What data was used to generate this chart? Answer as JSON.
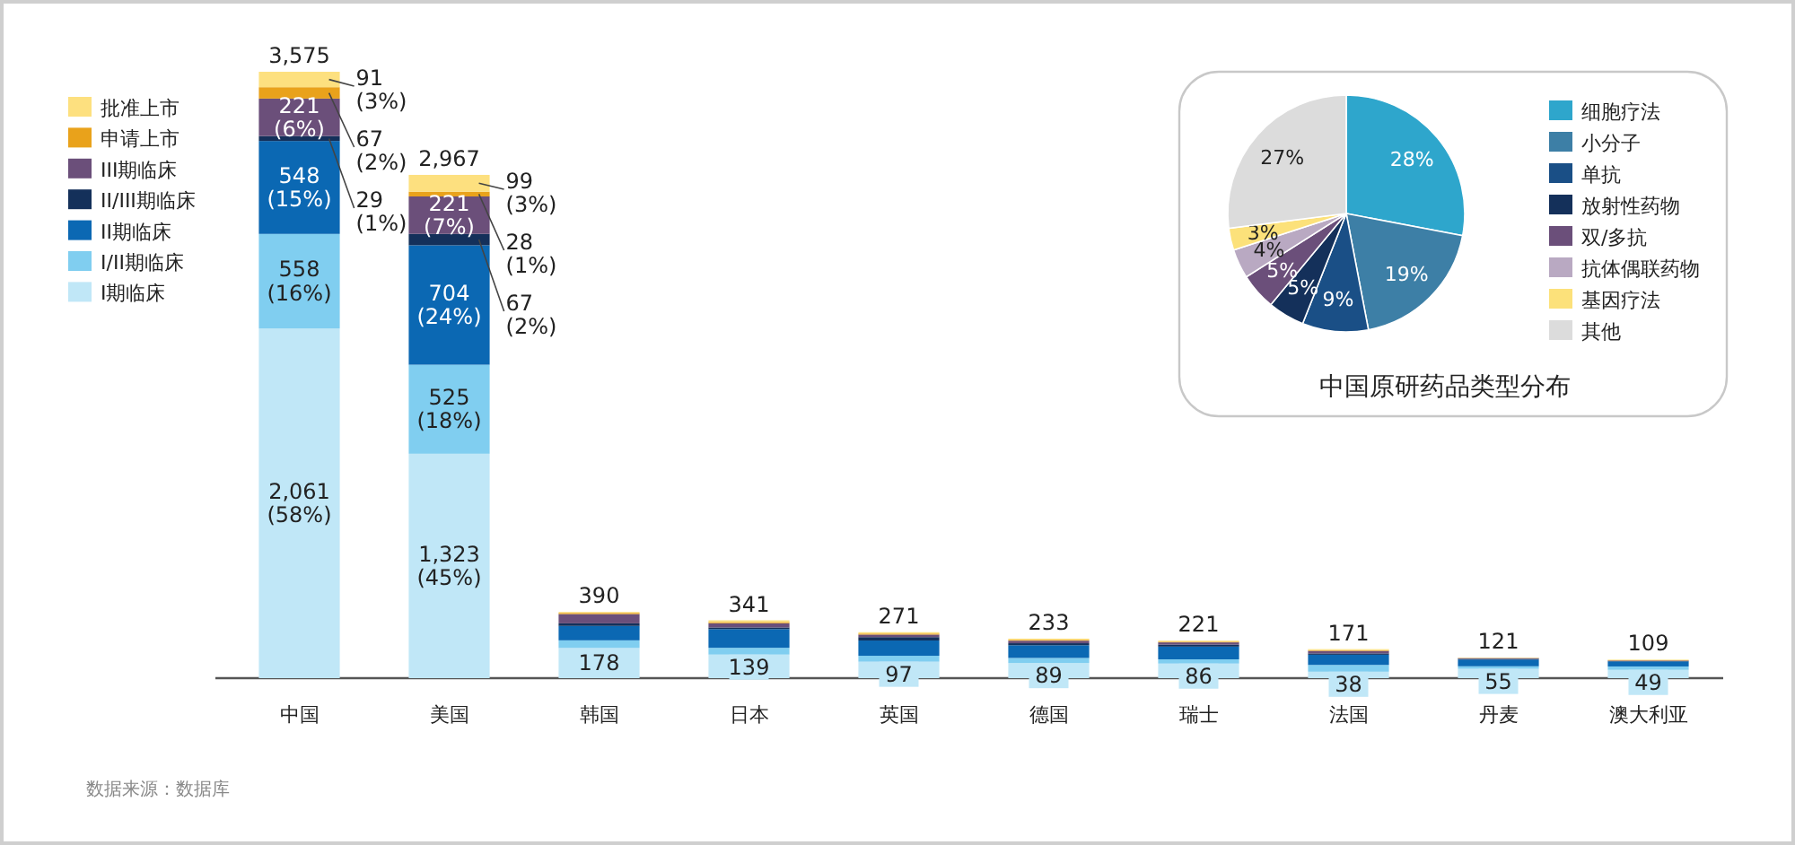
{
  "chart_data": [
    {
      "type": "bar",
      "stacked": true,
      "legend": "top left",
      "categories": [
        "中国",
        "美国",
        "韩国",
        "日本",
        "英国",
        "德国",
        "瑞士",
        "法国",
        "丹麦",
        "澳大利亚"
      ],
      "series": [
        {
          "name": "I期临床",
          "color": "#c0e7f7",
          "values": [
            2061,
            1323,
            178,
            139,
            97,
            89,
            86,
            38,
            55,
            49
          ],
          "value_labels": [
            "2,061\n(58%)",
            "1,323\n(45%)",
            "178",
            "139",
            "97",
            "89",
            "86",
            "38",
            "55",
            "49"
          ]
        },
        {
          "name": "I/II期临床",
          "color": "#80cef0",
          "values": [
            558,
            525,
            45,
            40,
            35,
            30,
            25,
            40,
            15,
            20
          ],
          "value_labels": [
            "558\n(16%)",
            "525\n(18%)",
            null,
            null,
            null,
            null,
            null,
            null,
            null,
            null
          ]
        },
        {
          "name": "II期临床",
          "color": "#0b68b3",
          "values": [
            548,
            704,
            85,
            110,
            90,
            75,
            75,
            60,
            40,
            30
          ],
          "value_labels": [
            "548\n(15%)",
            "704\n(24%)",
            null,
            null,
            null,
            null,
            null,
            null,
            null,
            null
          ]
        },
        {
          "name": "II/III期临床",
          "color": "#14305a",
          "values": [
            29,
            67,
            15,
            10,
            20,
            12,
            12,
            8,
            4,
            2
          ],
          "value_labels": [
            "29\n(1%)",
            "67\n(2%)",
            null,
            null,
            null,
            null,
            null,
            null,
            null,
            null
          ]
        },
        {
          "name": "III期临床",
          "color": "#6b4f7a",
          "values": [
            221,
            221,
            55,
            25,
            15,
            15,
            13,
            15,
            4,
            3
          ],
          "value_labels": [
            "221\n(6%)",
            "221\n(7%)",
            null,
            null,
            null,
            null,
            null,
            null,
            null,
            null
          ]
        },
        {
          "name": "申请上市",
          "color": "#e9a21b",
          "values": [
            67,
            28,
            7,
            7,
            6,
            5,
            4,
            4,
            1,
            2
          ],
          "value_labels": [
            "67\n(2%)",
            "28\n(1%)",
            null,
            null,
            null,
            null,
            null,
            null,
            null,
            null
          ]
        },
        {
          "name": "批准上市",
          "color": "#fde07f",
          "values": [
            91,
            99,
            5,
            10,
            8,
            7,
            6,
            6,
            2,
            3
          ],
          "value_labels": [
            "91\n(3%)",
            "99\n(3%)",
            null,
            null,
            null,
            null,
            null,
            null,
            null,
            null
          ]
        }
      ],
      "totals": [
        "3,575",
        "2,967",
        "390",
        "341",
        "271",
        "233",
        "221",
        "171",
        "121",
        "109"
      ],
      "annotations": [
        "数据来源：数据库"
      ]
    },
    {
      "type": "pie",
      "title": "中国原研药品类型分布",
      "legend": "right",
      "categories": [
        "细胞疗法",
        "小分子",
        "单抗",
        "放射性药物",
        "双/多抗",
        "抗体偶联药物",
        "基因疗法",
        "其他"
      ],
      "values": [
        28,
        19,
        9,
        5,
        5,
        4,
        3,
        27
      ],
      "colors": [
        "#2ea6cc",
        "#3d7fa6",
        "#1a4f86",
        "#14305a",
        "#6b4f7a",
        "#b9a9c2",
        "#fce17a",
        "#dcdcdc"
      ],
      "value_labels": [
        "28%",
        "19%",
        "9%",
        "5%",
        "5%",
        "4%",
        "3%",
        "27%"
      ]
    }
  ]
}
